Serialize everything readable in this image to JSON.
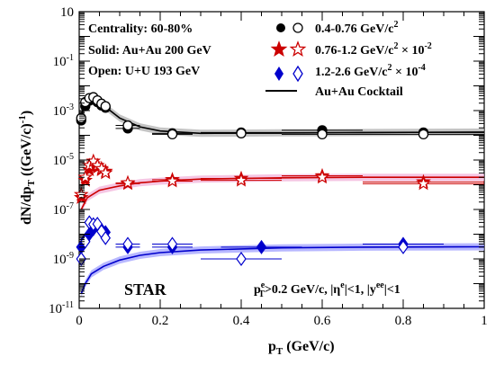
{
  "chart_data": {
    "type": "scatter",
    "xlabel": "p_T (GeV/c)",
    "ylabel": "dN/dp_T ((GeV/c)^-1)",
    "xlim": [
      0,
      1
    ],
    "ylim": [
      1e-11,
      10
    ],
    "yscale": "log",
    "x_ticks": [
      "0",
      "0.2",
      "0.4",
      "0.6",
      "0.8",
      "1"
    ],
    "y_ticks": [
      "10^-11",
      "10^-9",
      "10^-7",
      "10^-5",
      "10^-3",
      "10^-1",
      "10"
    ],
    "annotations": {
      "centrality": "Centrality: 60-80%",
      "solid": "Solid: Au+Au 200 GeV",
      "open": "Open: U+U 193 GeV",
      "star": "STAR",
      "cuts": "p_T^e>0.2 GeV/c, |η^e|<1, |y^ee|<1"
    },
    "legend_placement": "top-right",
    "series": [
      {
        "name": "0.4-0.76 GeV/c^2",
        "marker": "circle",
        "color": "#000000",
        "solid": {
          "x": [
            0.005,
            0.015,
            0.025,
            0.035,
            0.045,
            0.055,
            0.065,
            0.12,
            0.23,
            0.4,
            0.6,
            0.85
          ],
          "y": [
            0.0004,
            0.0015,
            0.0025,
            0.0028,
            0.0022,
            0.0016,
            0.0013,
            0.00019,
            0.00012,
            0.00013,
            0.00016,
            0.00013
          ]
        },
        "open": {
          "x": [
            0.005,
            0.015,
            0.025,
            0.035,
            0.045,
            0.055,
            0.065,
            0.12,
            0.23,
            0.4,
            0.6,
            0.85
          ],
          "y": [
            0.0005,
            0.0022,
            0.0032,
            0.0035,
            0.0026,
            0.0019,
            0.0015,
            0.00025,
            0.00011,
            0.00012,
            0.00011,
            0.00011
          ]
        },
        "cocktail": [
          [
            0.005,
            0.0007
          ],
          [
            0.02,
            0.0025
          ],
          [
            0.035,
            0.003
          ],
          [
            0.05,
            0.0022
          ],
          [
            0.07,
            0.0012
          ],
          [
            0.1,
            0.0005
          ],
          [
            0.15,
            0.00022
          ],
          [
            0.2,
            0.00015
          ],
          [
            0.3,
            0.00012
          ],
          [
            0.5,
            0.000125
          ],
          [
            0.7,
            0.00013
          ],
          [
            1.0,
            0.000135
          ]
        ]
      },
      {
        "name": "0.76-1.2 GeV/c^2 × 10^-2",
        "marker": "star",
        "color": "#cc0000",
        "solid": {
          "x": [
            0.005,
            0.015,
            0.025,
            0.035,
            0.045,
            0.055,
            0.065,
            0.12,
            0.23,
            0.4,
            0.6,
            0.85
          ],
          "y": [
            3e-07,
            1.5e-06,
            4e-06,
            7e-06,
            5e-06,
            4e-06,
            3.5e-06,
            1.1e-06,
            1.6e-06,
            1.8e-06,
            2.3e-06,
            1.3e-06
          ]
        },
        "open": {
          "x": [
            0.005,
            0.015,
            0.025,
            0.035,
            0.045,
            0.055,
            0.065,
            0.12,
            0.23,
            0.4,
            0.6,
            0.85
          ],
          "y": [
            4e-07,
            2e-06,
            6e-06,
            9e-06,
            6e-06,
            4.5e-06,
            3e-06,
            1.2e-06,
            1.4e-06,
            1.5e-06,
            2e-06,
            1.1e-06
          ]
        },
        "cocktail": [
          [
            0.005,
            1e-07
          ],
          [
            0.02,
            3e-07
          ],
          [
            0.05,
            6e-07
          ],
          [
            0.1,
            9e-07
          ],
          [
            0.15,
            1.2e-06
          ],
          [
            0.2,
            1.4e-06
          ],
          [
            0.3,
            1.7e-06
          ],
          [
            0.5,
            1.9e-06
          ],
          [
            0.7,
            2e-06
          ],
          [
            1.0,
            2e-06
          ]
        ]
      },
      {
        "name": "1.2-2.6 GeV/c^2 × 10^-4",
        "marker": "diamond",
        "color": "#0000cc",
        "solid": {
          "x": [
            0.005,
            0.015,
            0.025,
            0.035,
            0.045,
            0.055,
            0.065,
            0.12,
            0.23,
            0.45,
            0.8
          ],
          "y": [
            3e-09,
            6e-09,
            1e-08,
            1.6e-08,
            2.3e-08,
            1.5e-08,
            1.2e-08,
            3e-09,
            3e-09,
            3e-09,
            4e-09
          ]
        },
        "open": {
          "x": [
            0.005,
            0.015,
            0.025,
            0.035,
            0.045,
            0.055,
            0.065,
            0.12,
            0.23,
            0.4,
            0.8
          ],
          "y": [
            1e-09,
            5e-09,
            3e-08,
            2.5e-08,
            2.6e-08,
            1.3e-08,
            7e-09,
            4e-09,
            4e-09,
            1e-09,
            3e-09
          ]
        },
        "cocktail": [
          [
            0.005,
            4e-11
          ],
          [
            0.015,
            1e-10
          ],
          [
            0.03,
            2.5e-10
          ],
          [
            0.06,
            5e-10
          ],
          [
            0.1,
            9e-10
          ],
          [
            0.15,
            1.4e-09
          ],
          [
            0.2,
            1.8e-09
          ],
          [
            0.3,
            2.3e-09
          ],
          [
            0.5,
            2.8e-09
          ],
          [
            0.7,
            3e-09
          ],
          [
            1.0,
            3.1e-09
          ]
        ]
      }
    ],
    "cocktail_legend": "Au+Au Cocktail"
  }
}
